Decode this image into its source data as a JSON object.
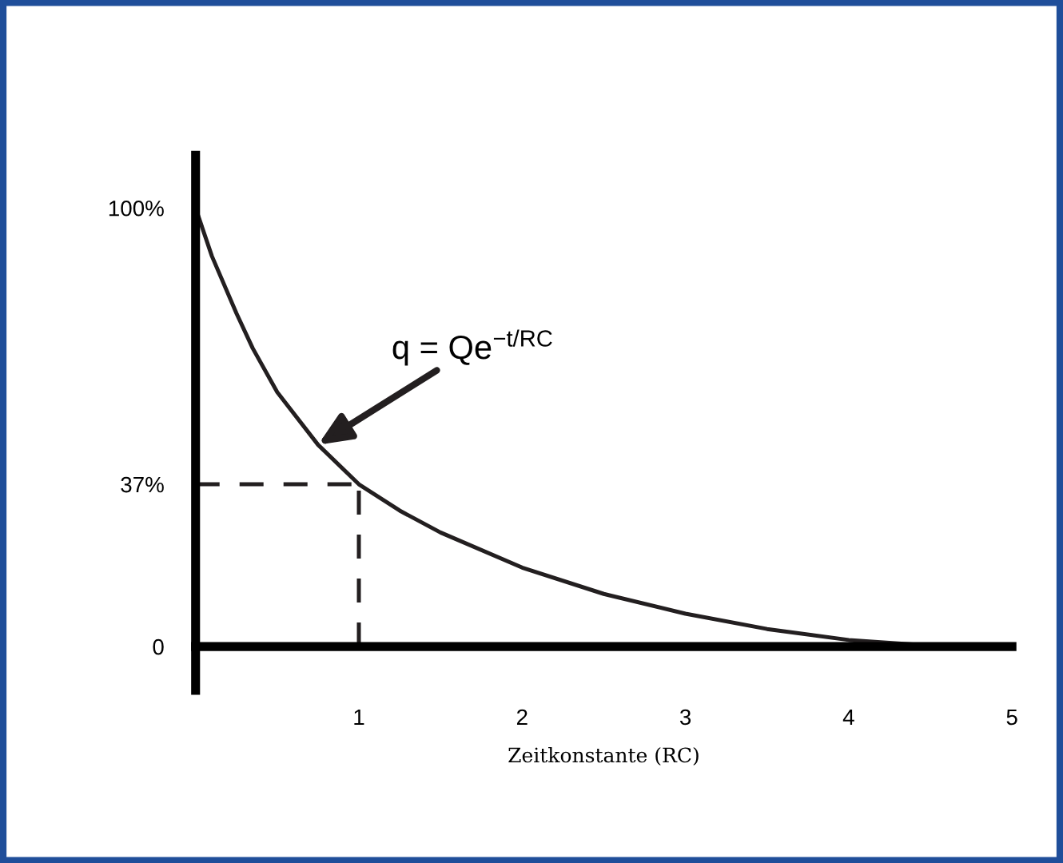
{
  "chart_data": {
    "type": "line",
    "xlabel": "Zeitkonstante (RC)",
    "x": [
      0,
      0.1,
      0.25,
      0.35,
      0.5,
      0.75,
      1,
      1.25,
      1.5,
      2,
      2.5,
      3,
      3.5,
      4,
      4.5,
      4.8
    ],
    "series": [
      {
        "color": "#231f20",
        "values": [
          100,
          89,
          76,
          68,
          58,
          46,
          37,
          31,
          26,
          18,
          12,
          7.5,
          4,
          1.5,
          0.2,
          0
        ]
      }
    ],
    "xlim": [
      0,
      5
    ],
    "xticks": [
      1,
      2,
      3,
      4,
      5
    ],
    "ylim": [
      -10,
      112
    ],
    "yticks": [
      0,
      {
        "value": 37,
        "label": "37%"
      },
      {
        "value": 100,
        "label": "100%"
      }
    ],
    "ref_lines": [
      {
        "axis": "y",
        "value": 37,
        "line_style": "dashed",
        "color": "#231f20"
      },
      {
        "axis": "x",
        "value": 1,
        "line_style": "dashed",
        "color": "#231f20"
      }
    ],
    "annotations": [
      {
        "text": "q = Qe$^{−t/RC}$",
        "x": 0.75,
        "y": 46
      }
    ],
    "legend": false,
    "marker": "none",
    "line_style": "solid"
  }
}
